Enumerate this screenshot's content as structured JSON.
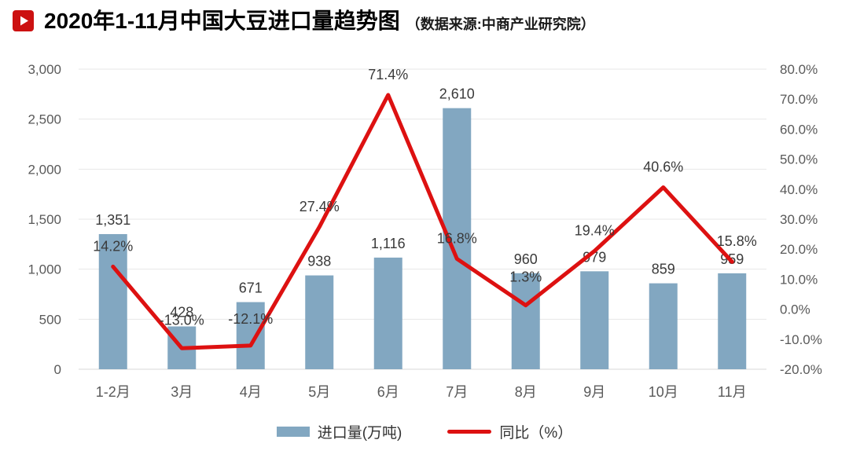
{
  "header": {
    "title": "2020年1-11月中国大豆进口量趋势图",
    "source": "（数据来源:中商产业研究院）",
    "icon_color": "#cc1111"
  },
  "chart_data": {
    "type": "combo-bar-line",
    "title": "2020年1-11月中国大豆进口量趋势图",
    "categories": [
      "1-2月",
      "3月",
      "4月",
      "5月",
      "6月",
      "7月",
      "8月",
      "9月",
      "10月",
      "11月"
    ],
    "series": [
      {
        "name": "进口量(万吨)",
        "type": "bar",
        "axis": "left",
        "color": "#82a7c1",
        "values": [
          1351,
          428,
          671,
          938,
          1116,
          2610,
          960,
          979,
          859,
          959
        ],
        "labels": [
          "1,351",
          "428",
          "671",
          "938",
          "1,116",
          "2,610",
          "960",
          "979",
          "859",
          "959"
        ]
      },
      {
        "name": "同比（%）",
        "type": "line",
        "axis": "right",
        "color": "#dd1111",
        "values": [
          14.2,
          -13.0,
          -12.1,
          27.4,
          71.4,
          16.8,
          1.3,
          19.4,
          40.6,
          15.8
        ],
        "labels": [
          "14.2%",
          "-13.0%",
          "-12.1%",
          "27.4%",
          "71.4%",
          "16.8%",
          "1.3%",
          "19.4%",
          "40.6%",
          "15.8%"
        ]
      }
    ],
    "left_axis": {
      "min": 0,
      "max": 3000,
      "ticks": [
        "3,000",
        "2,500",
        "2,000",
        "1,500",
        "1,000",
        "500",
        "0"
      ]
    },
    "right_axis": {
      "min": -20,
      "max": 80,
      "ticks": [
        "80.0%",
        "70.0%",
        "60.0%",
        "50.0%",
        "40.0%",
        "30.0%",
        "20.0%",
        "10.0%",
        "0.0%",
        "-10.0%",
        "-20.0%"
      ]
    },
    "grid": true,
    "legend_position": "bottom",
    "legend": [
      {
        "label": "进口量(万吨)",
        "color": "#82a7c1",
        "marker": "bar"
      },
      {
        "label": "同比（%）",
        "color": "#dd1111",
        "marker": "line"
      }
    ]
  }
}
